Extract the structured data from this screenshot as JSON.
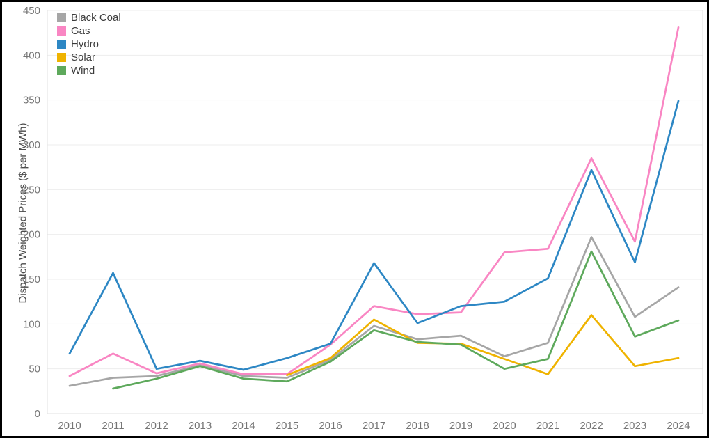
{
  "chart_data": {
    "type": "line",
    "title": "",
    "xlabel": "",
    "ylabel": "Dispatch Weighted Prices ($ per MWh)",
    "x": [
      2010,
      2011,
      2012,
      2013,
      2014,
      2015,
      2016,
      2017,
      2018,
      2019,
      2020,
      2021,
      2022,
      2023,
      2024
    ],
    "yticks": [
      0,
      50,
      100,
      150,
      200,
      250,
      300,
      350,
      400,
      450
    ],
    "ylim": [
      0,
      450
    ],
    "grid": "horizontal",
    "legend_position": "top-left",
    "series": [
      {
        "name": "Black Coal",
        "color": "#a6a6a6",
        "values": [
          31,
          40,
          42,
          54,
          42,
          40,
          60,
          98,
          83,
          87,
          64,
          79,
          197,
          108,
          141
        ]
      },
      {
        "name": "Gas",
        "color": "#f986c3",
        "values": [
          42,
          67,
          45,
          56,
          44,
          44,
          77,
          120,
          111,
          113,
          180,
          184,
          285,
          192,
          431
        ]
      },
      {
        "name": "Hydro",
        "color": "#2d87c4",
        "values": [
          67,
          157,
          50,
          59,
          49,
          62,
          78,
          168,
          101,
          120,
          125,
          151,
          272,
          169,
          349
        ]
      },
      {
        "name": "Solar",
        "color": "#efb300",
        "values": [
          null,
          null,
          null,
          null,
          null,
          43,
          62,
          105,
          79,
          78,
          61,
          44,
          110,
          53,
          62
        ]
      },
      {
        "name": "Wind",
        "color": "#5ea95c",
        "values": [
          null,
          28,
          39,
          53,
          39,
          36,
          58,
          93,
          80,
          77,
          50,
          61,
          181,
          86,
          104
        ]
      }
    ],
    "colors": {
      "gridline": "#ededed",
      "axis_line": "#e2e2e2",
      "tick_text": "#757575"
    }
  }
}
